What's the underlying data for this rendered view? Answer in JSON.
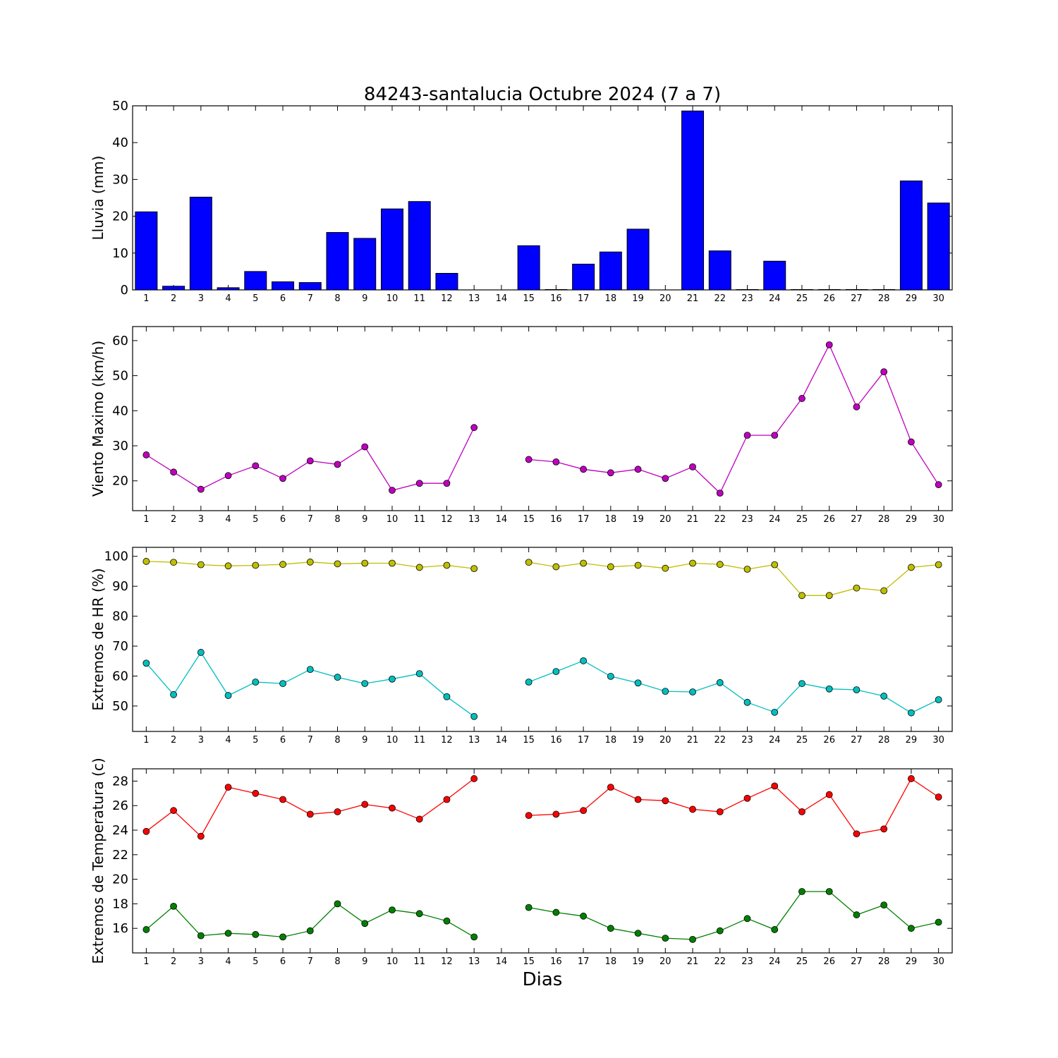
{
  "title": "84243-santalucia Octubre 2024  (7 a 7)",
  "xlabel": "Dias",
  "colors": {
    "rain": "#0000ff",
    "wind": "#bf00bf",
    "hr_max": "#bfbf00",
    "hr_min": "#00bfbf",
    "temp_max": "#ff0000",
    "temp_min": "#008000"
  },
  "chart_data": [
    {
      "type": "bar",
      "ylabel": "Lluvia (mm)",
      "ylim": [
        0,
        50
      ],
      "yticks": [
        0,
        10,
        20,
        30,
        40,
        50
      ],
      "xlim": [
        0.5,
        30.5
      ],
      "categories": [
        1,
        2,
        3,
        4,
        5,
        6,
        7,
        8,
        9,
        10,
        11,
        12,
        13,
        14,
        15,
        16,
        17,
        18,
        19,
        20,
        21,
        22,
        23,
        24,
        25,
        26,
        27,
        28,
        29,
        30
      ],
      "values": [
        21.2,
        1.0,
        25.2,
        0.6,
        5.0,
        2.2,
        2.0,
        15.6,
        14.0,
        22.0,
        24.0,
        4.5,
        0,
        0,
        12.0,
        0.1,
        7.0,
        10.3,
        16.5,
        0,
        48.6,
        10.6,
        0.1,
        7.8,
        0.1,
        0.1,
        0.1,
        0.1,
        29.6,
        23.6
      ]
    },
    {
      "type": "line",
      "ylabel": "Viento Maximo (km/h)",
      "ylim": [
        11.5,
        64
      ],
      "yticks": [
        20,
        30,
        40,
        50,
        60
      ],
      "xlim": [
        0.5,
        30.5
      ],
      "x": [
        1,
        2,
        3,
        4,
        5,
        6,
        7,
        8,
        9,
        10,
        11,
        12,
        13,
        14,
        15,
        16,
        17,
        18,
        19,
        20,
        21,
        22,
        23,
        24,
        25,
        26,
        27,
        28,
        29,
        30
      ],
      "series": [
        {
          "values": [
            27.4,
            22.5,
            17.6,
            21.5,
            24.3,
            20.7,
            25.7,
            24.7,
            29.7,
            17.3,
            19.3,
            19.3,
            35.2,
            null,
            26.1,
            25.4,
            23.3,
            22.3,
            23.3,
            20.7,
            24.0,
            16.5,
            33.0,
            33.0,
            43.5,
            58.8,
            41.1,
            51.1,
            31.1,
            18.9
          ]
        }
      ]
    },
    {
      "type": "line",
      "ylabel": "Extremos de HR (%)",
      "ylim": [
        41.5,
        103
      ],
      "yticks": [
        50,
        60,
        70,
        80,
        90,
        100
      ],
      "xlim": [
        0.5,
        30.5
      ],
      "x": [
        1,
        2,
        3,
        4,
        5,
        6,
        7,
        8,
        9,
        10,
        11,
        12,
        13,
        14,
        15,
        16,
        17,
        18,
        19,
        20,
        21,
        22,
        23,
        24,
        25,
        26,
        27,
        28,
        29,
        30
      ],
      "series": [
        {
          "values": [
            98.3,
            98.0,
            97.2,
            96.8,
            97.0,
            97.3,
            98.1,
            97.5,
            97.7,
            97.7,
            96.3,
            97.0,
            95.9,
            null,
            98.0,
            96.5,
            97.7,
            96.5,
            97.0,
            96.0,
            97.7,
            97.3,
            95.7,
            97.2,
            86.9,
            86.9,
            89.4,
            88.5,
            96.3,
            97.2
          ]
        },
        {
          "values": [
            64.3,
            53.8,
            67.9,
            53.5,
            58.0,
            57.5,
            62.2,
            59.6,
            57.5,
            59.0,
            60.8,
            53.1,
            46.5,
            null,
            58.0,
            61.5,
            65.1,
            59.9,
            57.7,
            54.9,
            54.7,
            57.8,
            51.2,
            47.9,
            57.5,
            55.7,
            55.4,
            53.3,
            47.7,
            52.1
          ]
        }
      ]
    },
    {
      "type": "line",
      "ylabel": "Extremos de Temperatura (c)",
      "ylim": [
        14.0,
        29.0
      ],
      "yticks": [
        16,
        18,
        20,
        22,
        24,
        26,
        28
      ],
      "xlim": [
        0.5,
        30.5
      ],
      "x": [
        1,
        2,
        3,
        4,
        5,
        6,
        7,
        8,
        9,
        10,
        11,
        12,
        13,
        14,
        15,
        16,
        17,
        18,
        19,
        20,
        21,
        22,
        23,
        24,
        25,
        26,
        27,
        28,
        29,
        30
      ],
      "series": [
        {
          "values": [
            23.9,
            25.6,
            23.5,
            27.5,
            27.0,
            26.5,
            25.3,
            25.5,
            26.1,
            25.8,
            24.9,
            26.5,
            28.2,
            null,
            25.2,
            25.3,
            25.6,
            27.5,
            26.5,
            26.4,
            25.7,
            25.5,
            26.6,
            27.6,
            25.5,
            26.9,
            23.7,
            24.1,
            28.2,
            26.7
          ]
        },
        {
          "values": [
            15.9,
            17.8,
            15.4,
            15.6,
            15.5,
            15.3,
            15.8,
            18.0,
            16.4,
            17.5,
            17.2,
            16.6,
            15.3,
            null,
            17.7,
            17.3,
            17.0,
            16.0,
            15.6,
            15.2,
            15.1,
            15.8,
            16.8,
            15.9,
            19.0,
            19.0,
            17.1,
            17.9,
            16.0,
            16.5
          ]
        }
      ]
    }
  ]
}
